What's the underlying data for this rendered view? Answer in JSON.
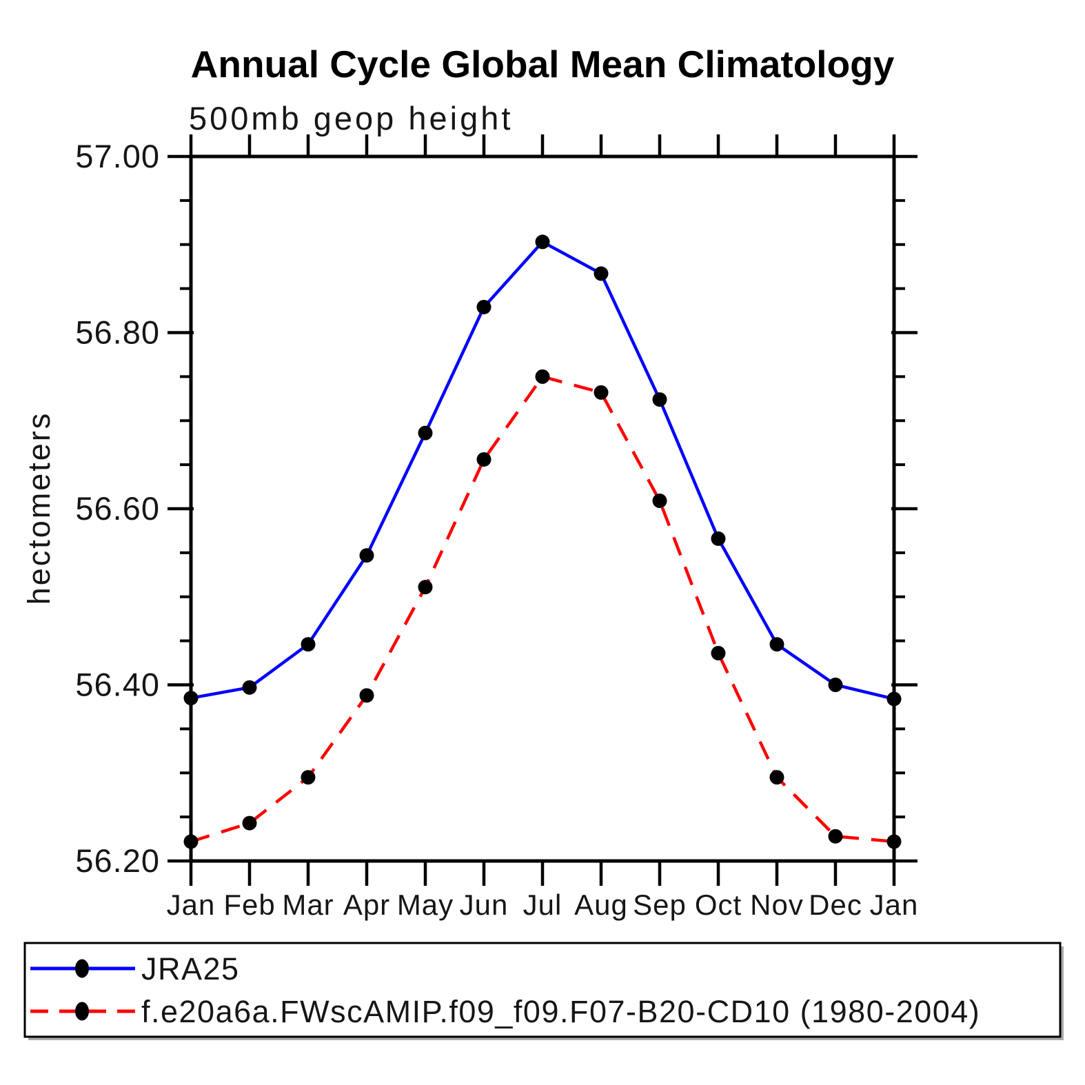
{
  "page": {
    "background": "#ffffff"
  },
  "header": {
    "title": "Annual Cycle Global Mean Climatology",
    "subtitle": "500mb geop height"
  },
  "axes": {
    "ylabel": "hectometers",
    "ytick_labels": [
      "57.00",
      "56.80",
      "56.60",
      "56.40",
      "56.20"
    ]
  },
  "legend": {
    "entries": [
      {
        "label": "JRA25"
      },
      {
        "label": "f.e20a6a.FWscAMIP.f09_f09.F07-B20-CD10 (1980-2004)"
      }
    ]
  },
  "colors": {
    "series1": "#0000ff",
    "series2": "#ff0000",
    "marker": "#000000",
    "axis": "#000000"
  },
  "chart_data": {
    "type": "line",
    "title": "Annual Cycle Global Mean Climatology",
    "subtitle": "500mb geop height",
    "xlabel": "",
    "ylabel": "hectometers",
    "categories": [
      "Jan",
      "Feb",
      "Mar",
      "Apr",
      "May",
      "Jun",
      "Jul",
      "Aug",
      "Sep",
      "Oct",
      "Nov",
      "Dec",
      "Jan"
    ],
    "ylim": [
      56.2,
      57.0
    ],
    "ytick_major": [
      56.2,
      56.4,
      56.6,
      56.8,
      57.0
    ],
    "ytick_major_labels": [
      "56.20",
      "56.40",
      "56.60",
      "56.80",
      "57.00"
    ],
    "ytick_minor_step": 0.05,
    "grid": false,
    "legend_position": "bottom-left-box",
    "series": [
      {
        "name": "JRA25",
        "color": "#0000ff",
        "style": "solid",
        "marker": "filled-circle",
        "marker_color": "#000000",
        "values": [
          56.385,
          56.397,
          56.446,
          56.547,
          56.686,
          56.829,
          56.903,
          56.867,
          56.724,
          56.566,
          56.446,
          56.4,
          56.384
        ]
      },
      {
        "name": "f.e20a6a.FWscAMIP.f09_f09.F07-B20-CD10 (1980-2004)",
        "color": "#ff0000",
        "style": "dashed",
        "marker": "filled-circle",
        "marker_color": "#000000",
        "values": [
          56.222,
          56.243,
          56.295,
          56.388,
          56.511,
          56.656,
          56.75,
          56.732,
          56.609,
          56.436,
          56.295,
          56.228,
          56.222
        ]
      }
    ]
  }
}
